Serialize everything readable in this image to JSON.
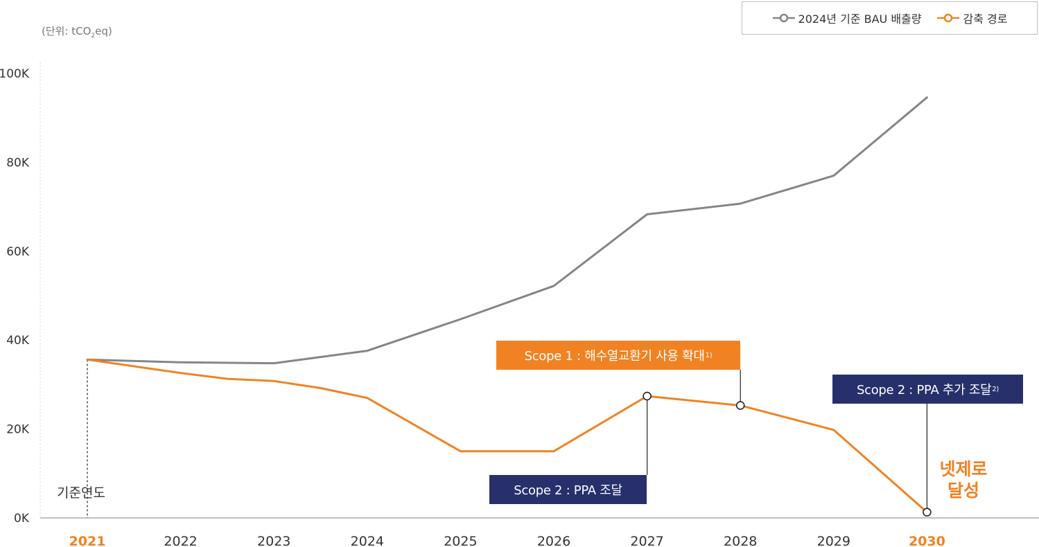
{
  "unit_prefix": "(단위: tCO",
  "unit_sub": "2",
  "unit_suffix": "eq)",
  "legend": {
    "bau_label": "2024년 기준 BAU 배출량",
    "reduction_label": "감축 경로"
  },
  "colors": {
    "bau": "#858585",
    "reduction": "#f08223",
    "navy": "#27306b",
    "accent_year": "#f08223"
  },
  "annotations": {
    "scope1_text": "Scope 1 : 해수열교환기 사용 확대",
    "scope1_sup": "1)",
    "scope2_ppa_add_text": "Scope 2 : PPA 추가 조달",
    "scope2_ppa_add_sup": "2)",
    "scope2_ppa_text": "Scope 2 : PPA 조달",
    "netzero_line1": "넷제로",
    "netzero_line2": "달성",
    "base_year_label": "기준연도"
  },
  "chart_data": {
    "type": "line",
    "categories": [
      "2021",
      "2022",
      "2023",
      "2024",
      "2025",
      "2026",
      "2027",
      "2028",
      "2029",
      "2030"
    ],
    "highlight_categories": [
      "2021",
      "2030"
    ],
    "ylim": [
      0,
      100000
    ],
    "yticks": [
      0,
      20000,
      40000,
      60000,
      80000,
      100000
    ],
    "ytick_labels": [
      "0K",
      "20K",
      "40K",
      "60K",
      "80K",
      "100K"
    ],
    "legend_position": "top-right",
    "series": [
      {
        "name": "2024년 기준 BAU 배출량",
        "color": "#858585",
        "points": [
          {
            "x": 2021,
            "y": 35600
          },
          {
            "x": 2022,
            "y": 35000
          },
          {
            "x": 2023,
            "y": 34800
          },
          {
            "x": 2024,
            "y": 37600
          },
          {
            "x": 2025,
            "y": 44700
          },
          {
            "x": 2026,
            "y": 52200
          },
          {
            "x": 2027,
            "y": 68300
          },
          {
            "x": 2028,
            "y": 70700
          },
          {
            "x": 2029,
            "y": 77000
          },
          {
            "x": 2030,
            "y": 94600
          }
        ]
      },
      {
        "name": "감축 경로",
        "color": "#f08223",
        "points": [
          {
            "x": 2021,
            "y": 35600
          },
          {
            "x": 2022,
            "y": 32600
          },
          {
            "x": 2022.5,
            "y": 31300
          },
          {
            "x": 2023,
            "y": 30800
          },
          {
            "x": 2023.5,
            "y": 29200
          },
          {
            "x": 2024,
            "y": 27000
          },
          {
            "x": 2025,
            "y": 15000
          },
          {
            "x": 2026,
            "y": 15000
          },
          {
            "x": 2027,
            "y": 27400
          },
          {
            "x": 2028,
            "y": 25300
          },
          {
            "x": 2029,
            "y": 19800
          },
          {
            "x": 2030,
            "y": 1300
          }
        ]
      }
    ],
    "markers": [
      {
        "x": 2027,
        "y": 27400
      },
      {
        "x": 2028,
        "y": 25300
      },
      {
        "x": 2030,
        "y": 1300
      }
    ]
  }
}
